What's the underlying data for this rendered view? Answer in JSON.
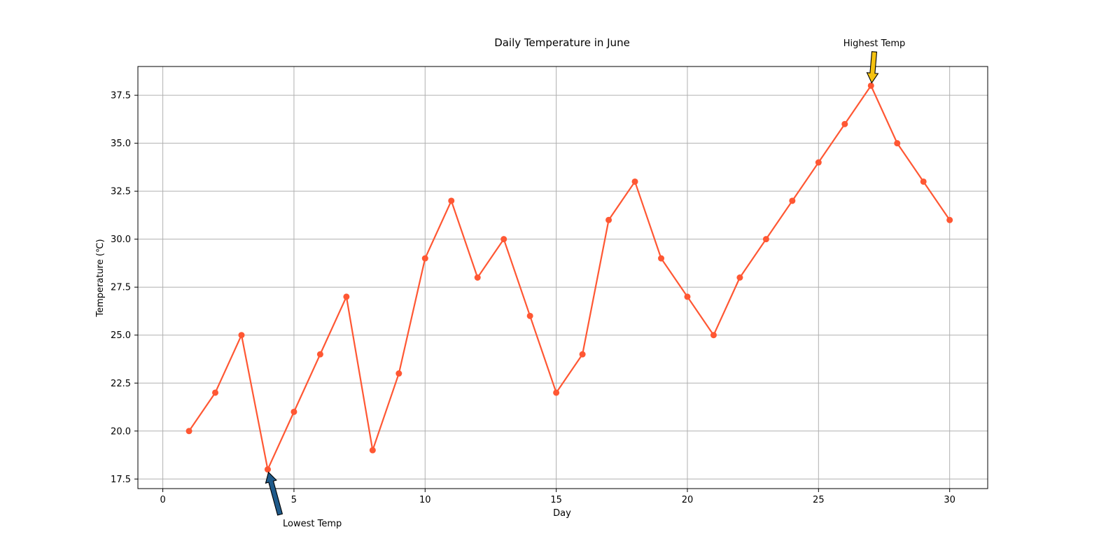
{
  "chart_data": {
    "type": "line",
    "title": "Daily Temperature in June",
    "xlabel": "Day",
    "ylabel": "Temperature (℃)",
    "xlim": [
      -0.95,
      31.45
    ],
    "ylim": [
      17.0,
      39.0
    ],
    "x_ticks": [
      0,
      5,
      10,
      15,
      20,
      25,
      30
    ],
    "x_tick_labels": [
      "0",
      "5",
      "10",
      "15",
      "20",
      "25",
      "30"
    ],
    "y_ticks": [
      17.5,
      20.0,
      22.5,
      25.0,
      27.5,
      30.0,
      32.5,
      35.0,
      37.5
    ],
    "y_tick_labels": [
      "17.5",
      "20.0",
      "22.5",
      "25.0",
      "27.5",
      "30.0",
      "32.5",
      "35.0",
      "37.5"
    ],
    "grid": true,
    "x": [
      1,
      2,
      3,
      4,
      5,
      6,
      7,
      8,
      9,
      10,
      11,
      12,
      13,
      14,
      15,
      16,
      17,
      18,
      19,
      20,
      21,
      22,
      23,
      24,
      25,
      26,
      27,
      28,
      29,
      30
    ],
    "series": [
      {
        "values": [
          20,
          22,
          25,
          18,
          21,
          24,
          27,
          19,
          23,
          29,
          32,
          28,
          30,
          26,
          22,
          24,
          31,
          33,
          29,
          27,
          25,
          28,
          30,
          32,
          34,
          36,
          38,
          35,
          33,
          31
        ],
        "color": "#ff5733",
        "marker": "circle"
      }
    ],
    "annotations": [
      {
        "text": "Lowest Temp",
        "x": 4,
        "y": 18,
        "arrow_color": "#1f5a8a"
      },
      {
        "text": "Highest Temp",
        "x": 27,
        "y": 38,
        "arrow_color": "#f5c211"
      }
    ]
  }
}
